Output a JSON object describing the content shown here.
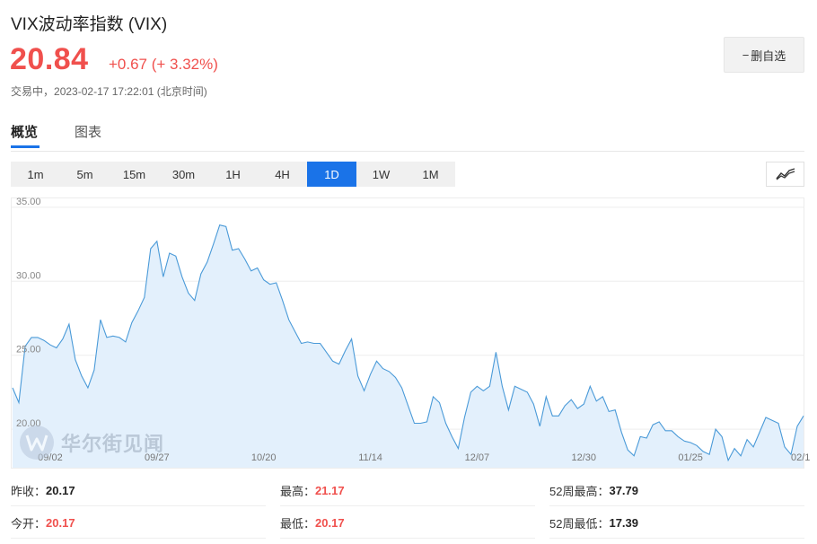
{
  "header": {
    "title": "VIX波动率指数 (VIX)",
    "price": "20.84",
    "change": "+0.67 (+ 3.32%)",
    "status": "交易中",
    "datetime": "2023-02-17 17:22:01 (北京时间)",
    "watchlist_button": "删自选",
    "accent_color": "#f0504d"
  },
  "tabs": [
    {
      "label": "概览",
      "active": true
    },
    {
      "label": "图表",
      "active": false
    }
  ],
  "periods": [
    {
      "label": "1m",
      "active": false
    },
    {
      "label": "5m",
      "active": false
    },
    {
      "label": "15m",
      "active": false
    },
    {
      "label": "30m",
      "active": false
    },
    {
      "label": "1H",
      "active": false
    },
    {
      "label": "4H",
      "active": false
    },
    {
      "label": "1D",
      "active": true
    },
    {
      "label": "1W",
      "active": false
    },
    {
      "label": "1M",
      "active": false
    }
  ],
  "chart_type_icon": "line-chart-icon",
  "watermark": {
    "logo": "wallstreetcn-logo",
    "text": "华尔街见闻"
  },
  "chart_data": {
    "type": "area",
    "ylim": [
      17.4,
      35.6
    ],
    "yticks": [
      "35.00",
      "30.00",
      "25.00",
      "20.00"
    ],
    "ytick_values": [
      35,
      30,
      25,
      20
    ],
    "xticks": [
      "09/02",
      "09/27",
      "10/20",
      "11/14",
      "12/07",
      "12/30",
      "01/25",
      "02/1"
    ],
    "xtick_index": [
      6,
      23,
      40,
      57,
      74,
      91,
      108,
      124
    ],
    "line_color": "#4a9ad8",
    "fill_color": "#e3f0fc",
    "values": [
      22.8,
      21.8,
      25.6,
      26.2,
      26.2,
      26.0,
      25.7,
      25.5,
      26.1,
      27.1,
      24.7,
      23.6,
      22.8,
      24.0,
      27.4,
      26.2,
      26.3,
      26.2,
      25.9,
      27.2,
      28.0,
      28.9,
      32.2,
      32.7,
      30.3,
      31.9,
      31.7,
      30.3,
      29.2,
      28.7,
      30.5,
      31.3,
      32.5,
      33.8,
      33.7,
      32.1,
      32.2,
      31.5,
      30.7,
      30.9,
      30.1,
      29.8,
      29.9,
      28.7,
      27.4,
      26.6,
      25.8,
      25.9,
      25.8,
      25.8,
      25.2,
      24.6,
      24.4,
      25.3,
      26.1,
      23.6,
      22.6,
      23.7,
      24.6,
      24.1,
      23.9,
      23.5,
      22.8,
      21.6,
      20.4,
      20.4,
      20.5,
      22.2,
      21.8,
      20.4,
      19.5,
      18.7,
      20.8,
      22.5,
      22.9,
      22.6,
      22.9,
      25.2,
      22.9,
      21.3,
      22.9,
      22.7,
      22.5,
      21.7,
      20.2,
      22.2,
      20.9,
      20.9,
      21.6,
      22.0,
      21.4,
      21.7,
      22.9,
      21.9,
      22.2,
      21.2,
      21.3,
      19.8,
      18.6,
      18.2,
      19.5,
      19.4,
      20.3,
      20.5,
      19.9,
      19.9,
      19.5,
      19.2,
      19.1,
      18.9,
      18.5,
      18.3,
      20.0,
      19.5,
      17.9,
      18.7,
      18.2,
      19.3,
      18.8,
      19.8,
      20.8,
      20.6,
      20.4,
      18.8,
      18.3,
      20.2,
      20.9
    ]
  },
  "stats": [
    {
      "label": "昨收：",
      "value": "20.17",
      "up": false
    },
    {
      "label": "最高：",
      "value": "21.17",
      "up": true
    },
    {
      "label": "52周最高：",
      "value": "37.79",
      "up": false
    },
    {
      "label": "今开：",
      "value": "20.17",
      "up": true
    },
    {
      "label": "最低：",
      "value": "20.17",
      "up": true
    },
    {
      "label": "52周最低：",
      "value": "17.39",
      "up": false
    }
  ]
}
